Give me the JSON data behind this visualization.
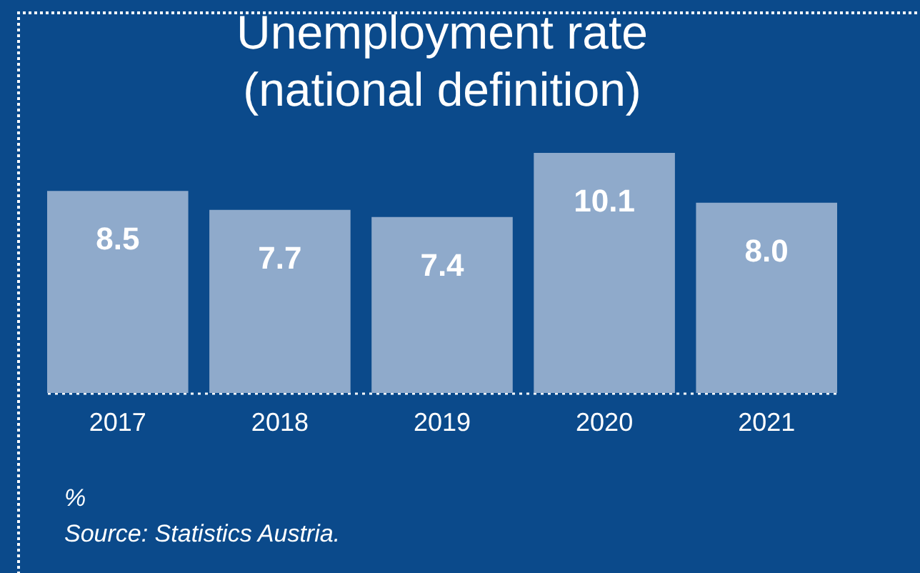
{
  "chart_data": {
    "type": "bar",
    "title": "Unemployment rate\n(national definition)",
    "categories": [
      "2017",
      "2018",
      "2019",
      "2020",
      "2021"
    ],
    "values": [
      8.5,
      7.7,
      7.4,
      10.1,
      8.0
    ],
    "value_labels": [
      "8.5",
      "7.7",
      "7.4",
      "10.1",
      "8.0"
    ],
    "color": "#8faacb",
    "annotations": [
      "%",
      "Source: Statistics Austria."
    ]
  }
}
